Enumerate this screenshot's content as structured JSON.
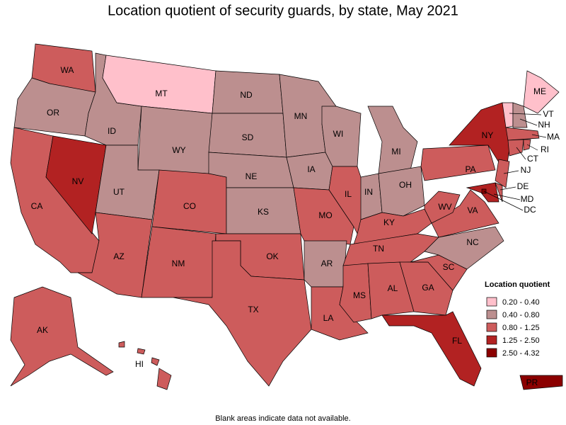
{
  "title": "Location quotient of security guards, by state, May 2021",
  "legend": {
    "title": "Location quotient",
    "classes": [
      {
        "label": "0.20 - 0.40",
        "color": "#ffc0cb"
      },
      {
        "label": "0.40 - 0.80",
        "color": "#bc8f8f"
      },
      {
        "label": "0.80 - 1.25",
        "color": "#cd5c5c"
      },
      {
        "label": "1.25 - 2.50",
        "color": "#b22222"
      },
      {
        "label": "2.50 - 4.32",
        "color": "#8b0000"
      }
    ]
  },
  "states": [
    {
      "label": "WA",
      "class": "0.80 - 1.25"
    },
    {
      "label": "OR",
      "class": "0.40 - 0.80"
    },
    {
      "label": "CA",
      "class": "0.80 - 1.25"
    },
    {
      "label": "NV",
      "class": "1.25 - 2.50"
    },
    {
      "label": "ID",
      "class": "0.40 - 0.80"
    },
    {
      "label": "MT",
      "class": "0.20 - 0.40"
    },
    {
      "label": "WY",
      "class": "0.40 - 0.80"
    },
    {
      "label": "UT",
      "class": "0.40 - 0.80"
    },
    {
      "label": "AZ",
      "class": "0.80 - 1.25"
    },
    {
      "label": "CO",
      "class": "0.80 - 1.25"
    },
    {
      "label": "NM",
      "class": "0.80 - 1.25"
    },
    {
      "label": "ND",
      "class": "0.40 - 0.80"
    },
    {
      "label": "SD",
      "class": "0.40 - 0.80"
    },
    {
      "label": "NE",
      "class": "0.40 - 0.80"
    },
    {
      "label": "KS",
      "class": "0.40 - 0.80"
    },
    {
      "label": "OK",
      "class": "0.80 - 1.25"
    },
    {
      "label": "TX",
      "class": "0.80 - 1.25"
    },
    {
      "label": "MN",
      "class": "0.40 - 0.80"
    },
    {
      "label": "IA",
      "class": "0.40 - 0.80"
    },
    {
      "label": "MO",
      "class": "0.80 - 1.25"
    },
    {
      "label": "AR",
      "class": "0.40 - 0.80"
    },
    {
      "label": "LA",
      "class": "0.80 - 1.25"
    },
    {
      "label": "WI",
      "class": "0.40 - 0.80"
    },
    {
      "label": "IL",
      "class": "0.80 - 1.25"
    },
    {
      "label": "MI",
      "class": "0.40 - 0.80"
    },
    {
      "label": "IN",
      "class": "0.40 - 0.80"
    },
    {
      "label": "OH",
      "class": "0.40 - 0.80"
    },
    {
      "label": "KY",
      "class": "0.80 - 1.25"
    },
    {
      "label": "TN",
      "class": "0.80 - 1.25"
    },
    {
      "label": "MS",
      "class": "0.80 - 1.25"
    },
    {
      "label": "AL",
      "class": "0.80 - 1.25"
    },
    {
      "label": "GA",
      "class": "0.80 - 1.25"
    },
    {
      "label": "FL",
      "class": "1.25 - 2.50"
    },
    {
      "label": "SC",
      "class": "0.80 - 1.25"
    },
    {
      "label": "NC",
      "class": "0.40 - 0.80"
    },
    {
      "label": "VA",
      "class": "0.80 - 1.25"
    },
    {
      "label": "WV",
      "class": "0.80 - 1.25"
    },
    {
      "label": "PA",
      "class": "0.80 - 1.25"
    },
    {
      "label": "NY",
      "class": "1.25 - 2.50"
    },
    {
      "label": "ME",
      "class": "0.20 - 0.40"
    },
    {
      "label": "VT",
      "class": "0.20 - 0.40"
    },
    {
      "label": "NH",
      "class": "0.40 - 0.80"
    },
    {
      "label": "MA",
      "class": "0.80 - 1.25"
    },
    {
      "label": "CT",
      "class": "0.80 - 1.25"
    },
    {
      "label": "RI",
      "class": "0.80 - 1.25"
    },
    {
      "label": "NJ",
      "class": "0.80 - 1.25"
    },
    {
      "label": "DE",
      "class": "0.80 - 1.25"
    },
    {
      "label": "MD",
      "class": "1.25 - 2.50"
    },
    {
      "label": "DC",
      "class": "2.50 - 4.32"
    },
    {
      "label": "AK",
      "class": "0.80 - 1.25"
    },
    {
      "label": "HI",
      "class": "0.80 - 1.25"
    },
    {
      "label": "PR",
      "class": "2.50 - 4.32"
    }
  ],
  "footnote": "Blank areas indicate data not available."
}
